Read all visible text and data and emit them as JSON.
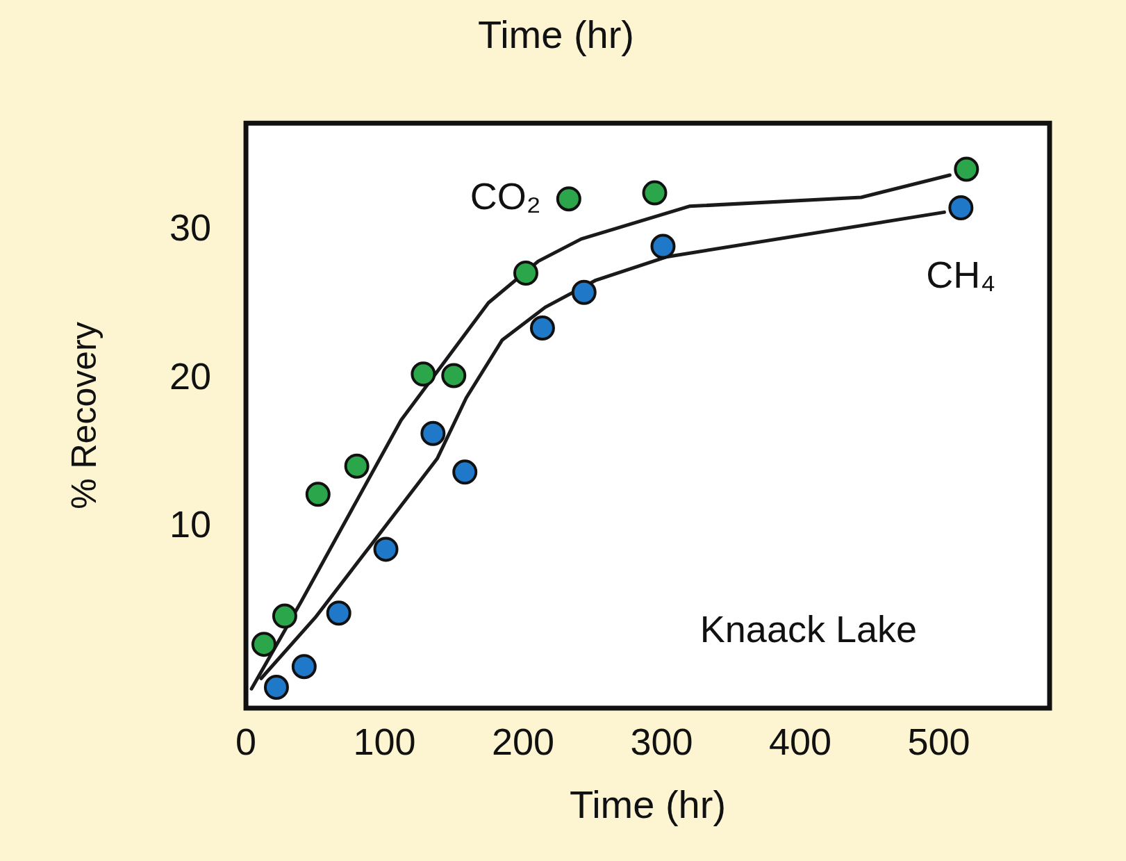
{
  "chart_data": {
    "type": "scatter",
    "title": "Time (hr)",
    "xlabel": "Time (hr)",
    "ylabel": "% Recovery",
    "xlim": [
      0,
      580
    ],
    "xticks": [
      0,
      100,
      200,
      300,
      400,
      500
    ],
    "ylim": [
      -2.2,
      37.2
    ],
    "yticks": [
      10,
      20,
      30
    ],
    "grid": false,
    "legend": false,
    "marker": "circle",
    "series": [
      {
        "type": "scatter",
        "name": "CO₂",
        "color": "#2ca64a",
        "x": [
          13,
          28,
          52,
          80,
          128,
          150,
          202,
          233,
          295,
          520
        ],
        "values": [
          2.1,
          4.0,
          12.2,
          14.1,
          20.3,
          20.2,
          27.1,
          32.1,
          32.5,
          34.1
        ]
      },
      {
        "type": "scatter",
        "name": "CH₄",
        "color": "#1f78c8",
        "x": [
          22,
          42,
          67,
          101,
          135,
          158,
          214,
          244,
          301,
          516
        ],
        "values": [
          -0.8,
          0.6,
          4.2,
          8.5,
          16.3,
          13.7,
          23.4,
          25.8,
          28.9,
          31.5
        ]
      },
      {
        "type": "line",
        "marker": "none",
        "color": "#1a1a1a",
        "x": [
          4,
          40,
          112,
          175,
          211,
          242,
          320,
          444,
          508
        ],
        "values": [
          -0.9,
          5,
          17.2,
          25.1,
          27.9,
          29.4,
          31.6,
          32.2,
          33.7
        ]
      },
      {
        "type": "line",
        "marker": "none",
        "color": "#1a1a1a",
        "x": [
          11,
          50,
          92,
          138,
          159,
          185,
          216,
          252,
          304,
          504
        ],
        "values": [
          -0.2,
          3.9,
          9.0,
          14.6,
          18.7,
          22.6,
          24.8,
          26.6,
          28.2,
          31.2
        ]
      }
    ],
    "annotations": [
      "Knaack Lake"
    ]
  }
}
